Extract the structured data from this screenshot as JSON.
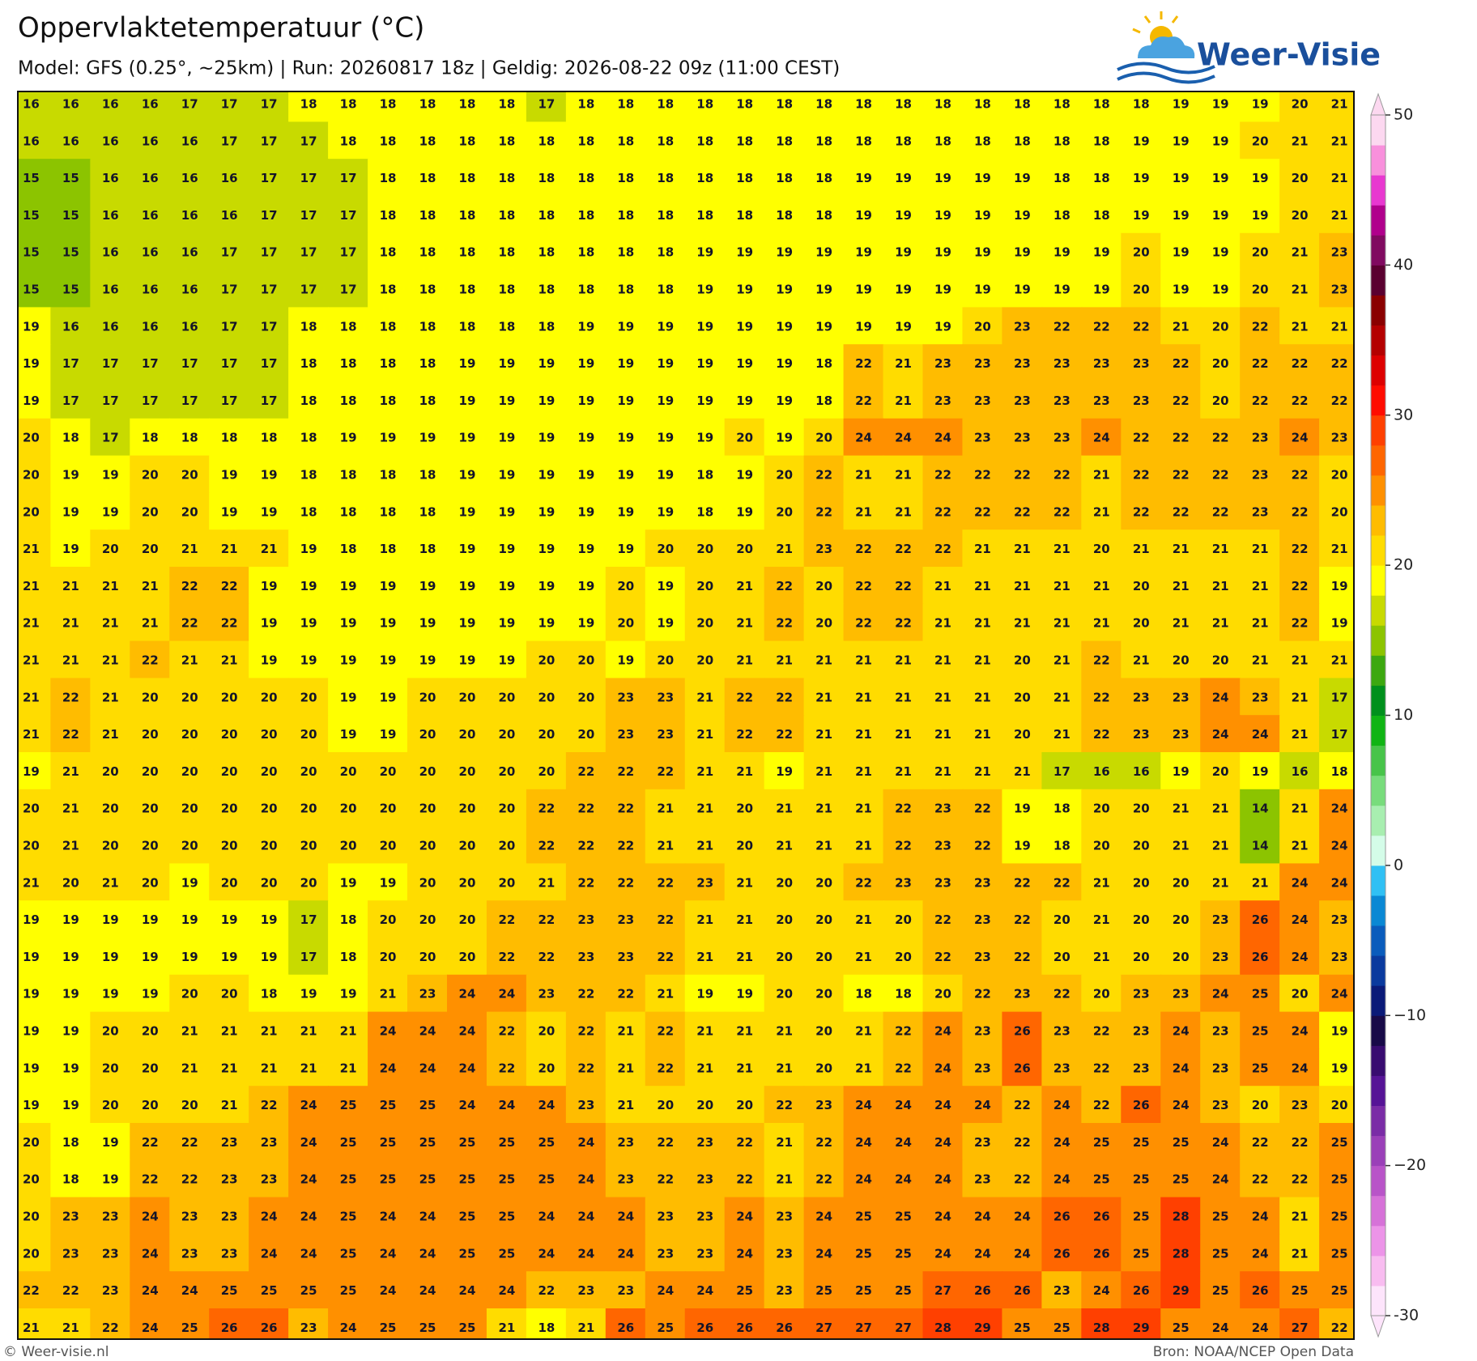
{
  "header": {
    "title": "Oppervlaktetemperatuur (°C)",
    "subtitle": "Model: GFS (0.25°, ~25km)  |  Run: 20260817 18z  |  Geldig: 2026-08-22 09z (11:00 CEST)"
  },
  "logo": "Weer-Visie",
  "grid": {
    "rows": [
      [
        16,
        16,
        16,
        16,
        17,
        17,
        17,
        18,
        18,
        18,
        18,
        18,
        18,
        17,
        18,
        18,
        18,
        18,
        18,
        18,
        18,
        18,
        18,
        18,
        18,
        18,
        18,
        18,
        18,
        19,
        19,
        19,
        20,
        21
      ],
      [
        16,
        16,
        16,
        16,
        16,
        17,
        17,
        17,
        18,
        18,
        18,
        18,
        18,
        18,
        18,
        18,
        18,
        18,
        18,
        18,
        18,
        18,
        18,
        18,
        18,
        18,
        18,
        18,
        19,
        19,
        19,
        20,
        21,
        21
      ],
      [
        15,
        15,
        16,
        16,
        16,
        16,
        17,
        17,
        17,
        18,
        18,
        18,
        18,
        18,
        18,
        18,
        18,
        18,
        18,
        18,
        18,
        19,
        19,
        19,
        19,
        19,
        18,
        18,
        19,
        19,
        19,
        19,
        20,
        21
      ],
      [
        15,
        15,
        16,
        16,
        16,
        16,
        17,
        17,
        17,
        18,
        18,
        18,
        18,
        18,
        18,
        18,
        18,
        18,
        18,
        18,
        18,
        19,
        19,
        19,
        19,
        19,
        18,
        18,
        19,
        19,
        19,
        19,
        20,
        21
      ],
      [
        15,
        15,
        16,
        16,
        16,
        17,
        17,
        17,
        17,
        18,
        18,
        18,
        18,
        18,
        18,
        18,
        18,
        19,
        19,
        19,
        19,
        19,
        19,
        19,
        19,
        19,
        19,
        19,
        20,
        19,
        19,
        20,
        21,
        23
      ],
      [
        15,
        15,
        16,
        16,
        16,
        17,
        17,
        17,
        17,
        18,
        18,
        18,
        18,
        18,
        18,
        18,
        18,
        19,
        19,
        19,
        19,
        19,
        19,
        19,
        19,
        19,
        19,
        19,
        20,
        19,
        19,
        20,
        21,
        23
      ],
      [
        19,
        16,
        16,
        16,
        16,
        17,
        17,
        18,
        18,
        18,
        18,
        18,
        18,
        18,
        19,
        19,
        19,
        19,
        19,
        19,
        19,
        19,
        19,
        19,
        20,
        23,
        22,
        22,
        22,
        21,
        20,
        22,
        21,
        21
      ],
      [
        19,
        17,
        17,
        17,
        17,
        17,
        17,
        18,
        18,
        18,
        18,
        19,
        19,
        19,
        19,
        19,
        19,
        19,
        19,
        19,
        18,
        22,
        21,
        23,
        23,
        23,
        23,
        23,
        23,
        22,
        20,
        22,
        22,
        22
      ],
      [
        19,
        17,
        17,
        17,
        17,
        17,
        17,
        18,
        18,
        18,
        18,
        19,
        19,
        19,
        19,
        19,
        19,
        19,
        19,
        19,
        18,
        22,
        21,
        23,
        23,
        23,
        23,
        23,
        23,
        22,
        20,
        22,
        22,
        22
      ],
      [
        20,
        18,
        17,
        18,
        18,
        18,
        18,
        18,
        19,
        19,
        19,
        19,
        19,
        19,
        19,
        19,
        19,
        19,
        20,
        19,
        20,
        24,
        24,
        24,
        23,
        23,
        23,
        24,
        22,
        22,
        22,
        23,
        24,
        23
      ],
      [
        20,
        19,
        19,
        20,
        20,
        19,
        19,
        18,
        18,
        18,
        18,
        19,
        19,
        19,
        19,
        19,
        19,
        18,
        19,
        20,
        22,
        21,
        21,
        22,
        22,
        22,
        22,
        21,
        22,
        22,
        22,
        23,
        22,
        20
      ],
      [
        20,
        19,
        19,
        20,
        20,
        19,
        19,
        18,
        18,
        18,
        18,
        19,
        19,
        19,
        19,
        19,
        19,
        18,
        19,
        20,
        22,
        21,
        21,
        22,
        22,
        22,
        22,
        21,
        22,
        22,
        22,
        23,
        22,
        20
      ],
      [
        21,
        19,
        20,
        20,
        21,
        21,
        21,
        19,
        18,
        18,
        18,
        19,
        19,
        19,
        19,
        19,
        20,
        20,
        20,
        21,
        23,
        22,
        22,
        22,
        21,
        21,
        21,
        20,
        21,
        21,
        21,
        21,
        22,
        21
      ],
      [
        21,
        21,
        21,
        21,
        22,
        22,
        19,
        19,
        19,
        19,
        19,
        19,
        19,
        19,
        19,
        20,
        19,
        20,
        21,
        22,
        20,
        22,
        22,
        21,
        21,
        21,
        21,
        21,
        20,
        21,
        21,
        21,
        22,
        19
      ],
      [
        21,
        21,
        21,
        21,
        22,
        22,
        19,
        19,
        19,
        19,
        19,
        19,
        19,
        19,
        19,
        20,
        19,
        20,
        21,
        22,
        20,
        22,
        22,
        21,
        21,
        21,
        21,
        21,
        20,
        21,
        21,
        21,
        22,
        19
      ],
      [
        21,
        21,
        21,
        22,
        21,
        21,
        19,
        19,
        19,
        19,
        19,
        19,
        19,
        20,
        20,
        19,
        20,
        20,
        21,
        21,
        21,
        21,
        21,
        21,
        21,
        20,
        21,
        22,
        21,
        20,
        20,
        21,
        21,
        21
      ],
      [
        21,
        22,
        21,
        20,
        20,
        20,
        20,
        20,
        19,
        19,
        20,
        20,
        20,
        20,
        20,
        23,
        23,
        21,
        22,
        22,
        21,
        21,
        21,
        21,
        21,
        20,
        21,
        22,
        23,
        23,
        24,
        23,
        21,
        17
      ],
      [
        21,
        22,
        21,
        20,
        20,
        20,
        20,
        20,
        19,
        19,
        20,
        20,
        20,
        20,
        20,
        23,
        23,
        21,
        22,
        22,
        21,
        21,
        21,
        21,
        21,
        20,
        21,
        22,
        23,
        23,
        24,
        24,
        21,
        17
      ],
      [
        19,
        21,
        20,
        20,
        20,
        20,
        20,
        20,
        20,
        20,
        20,
        20,
        20,
        20,
        22,
        22,
        22,
        21,
        21,
        19,
        21,
        21,
        21,
        21,
        21,
        21,
        17,
        16,
        16,
        19,
        20,
        19,
        16,
        18
      ],
      [
        20,
        21,
        20,
        20,
        20,
        20,
        20,
        20,
        20,
        20,
        20,
        20,
        20,
        22,
        22,
        22,
        21,
        21,
        20,
        21,
        21,
        21,
        22,
        23,
        22,
        19,
        18,
        20,
        20,
        21,
        21,
        14,
        21,
        24
      ],
      [
        20,
        21,
        20,
        20,
        20,
        20,
        20,
        20,
        20,
        20,
        20,
        20,
        20,
        22,
        22,
        22,
        21,
        21,
        20,
        21,
        21,
        21,
        22,
        23,
        22,
        19,
        18,
        20,
        20,
        21,
        21,
        14,
        21,
        24
      ],
      [
        21,
        20,
        21,
        20,
        19,
        20,
        20,
        20,
        19,
        19,
        20,
        20,
        20,
        21,
        22,
        22,
        22,
        23,
        21,
        20,
        20,
        22,
        23,
        23,
        23,
        22,
        22,
        21,
        20,
        20,
        21,
        21,
        24,
        24
      ],
      [
        19,
        19,
        19,
        19,
        19,
        19,
        19,
        17,
        18,
        20,
        20,
        20,
        22,
        22,
        23,
        23,
        22,
        21,
        21,
        20,
        20,
        21,
        20,
        22,
        23,
        22,
        20,
        21,
        20,
        20,
        23,
        26,
        24,
        23
      ],
      [
        19,
        19,
        19,
        19,
        19,
        19,
        19,
        17,
        18,
        20,
        20,
        20,
        22,
        22,
        23,
        23,
        22,
        21,
        21,
        20,
        20,
        21,
        20,
        22,
        23,
        22,
        20,
        21,
        20,
        20,
        23,
        26,
        24,
        23
      ],
      [
        19,
        19,
        19,
        19,
        20,
        20,
        18,
        19,
        19,
        21,
        23,
        24,
        24,
        23,
        22,
        22,
        21,
        19,
        19,
        20,
        20,
        18,
        18,
        20,
        22,
        23,
        22,
        20,
        23,
        23,
        24,
        25,
        20,
        24
      ],
      [
        19,
        19,
        20,
        20,
        21,
        21,
        21,
        21,
        21,
        24,
        24,
        24,
        22,
        20,
        22,
        21,
        22,
        21,
        21,
        21,
        20,
        21,
        22,
        24,
        23,
        26,
        23,
        22,
        23,
        24,
        23,
        25,
        24,
        19
      ],
      [
        19,
        19,
        20,
        20,
        21,
        21,
        21,
        21,
        21,
        24,
        24,
        24,
        22,
        20,
        22,
        21,
        22,
        21,
        21,
        21,
        20,
        21,
        22,
        24,
        23,
        26,
        23,
        22,
        23,
        24,
        23,
        25,
        24,
        19
      ],
      [
        19,
        19,
        20,
        20,
        20,
        21,
        22,
        24,
        25,
        25,
        25,
        24,
        24,
        24,
        23,
        21,
        20,
        20,
        20,
        22,
        23,
        24,
        24,
        24,
        24,
        22,
        24,
        22,
        26,
        24,
        23,
        20,
        23,
        20
      ],
      [
        20,
        18,
        19,
        22,
        22,
        23,
        23,
        24,
        25,
        25,
        25,
        25,
        25,
        25,
        24,
        23,
        22,
        23,
        22,
        21,
        22,
        24,
        24,
        24,
        23,
        22,
        24,
        25,
        25,
        25,
        24,
        22,
        22,
        25
      ],
      [
        20,
        18,
        19,
        22,
        22,
        23,
        23,
        24,
        25,
        25,
        25,
        25,
        25,
        25,
        24,
        23,
        22,
        23,
        22,
        21,
        22,
        24,
        24,
        24,
        23,
        22,
        24,
        25,
        25,
        25,
        24,
        22,
        22,
        25
      ],
      [
        20,
        23,
        23,
        24,
        23,
        23,
        24,
        24,
        25,
        24,
        24,
        25,
        25,
        24,
        24,
        24,
        23,
        23,
        24,
        23,
        24,
        25,
        25,
        24,
        24,
        24,
        26,
        26,
        25,
        28,
        25,
        24,
        21,
        25
      ],
      [
        20,
        23,
        23,
        24,
        23,
        23,
        24,
        24,
        25,
        24,
        24,
        25,
        25,
        24,
        24,
        24,
        23,
        23,
        24,
        23,
        24,
        25,
        25,
        24,
        24,
        24,
        26,
        26,
        25,
        28,
        25,
        24,
        21,
        25
      ],
      [
        22,
        22,
        23,
        24,
        24,
        25,
        25,
        25,
        25,
        24,
        24,
        24,
        24,
        22,
        23,
        23,
        24,
        24,
        25,
        23,
        25,
        25,
        25,
        27,
        26,
        26,
        23,
        24,
        26,
        29,
        25,
        26,
        25,
        25
      ],
      [
        21,
        21,
        22,
        24,
        25,
        26,
        26,
        23,
        24,
        25,
        25,
        25,
        21,
        18,
        21,
        26,
        25,
        26,
        26,
        26,
        27,
        27,
        27,
        28,
        29,
        25,
        25,
        28,
        29,
        25,
        24,
        24,
        27,
        22
      ]
    ]
  },
  "colorbar": {
    "ylim": [
      -30,
      50
    ],
    "ticks": [
      -30,
      {
        "value": -20,
        "label": "−20"
      },
      {
        "value": -10,
        "label": "−10"
      },
      0,
      10,
      20,
      30,
      40,
      50
    ],
    "colors": [
      "#fde4fb",
      "#f8bcf0",
      "#ec94e8",
      "#d672d8",
      "#b854c8",
      "#9a40b8",
      "#7a2ca6",
      "#561496",
      "#380c70",
      "#180a48",
      "#0a1a78",
      "#0a3a9e",
      "#0a5cbc",
      "#0a88d4",
      "#30c0f4",
      "#d4fce8",
      "#a8eeb0",
      "#78dc7c",
      "#48c44a",
      "#10b414",
      "#00901c",
      "#3ca810",
      "#8cc400",
      "#c8da00",
      "#ffff00",
      "#ffdc00",
      "#ffbc00",
      "#ff9000",
      "#ff6600",
      "#ff4000",
      "#ff0c00",
      "#dd0000",
      "#b40000",
      "#8a0000",
      "#5a0030",
      "#800a60",
      "#b0008c",
      "#e838d0",
      "#f890dc",
      "#fcd8f0"
    ]
  },
  "footer": {
    "left": "© Weer-visie.nl",
    "right": "Bron: NOAA/NCEP Open Data"
  }
}
